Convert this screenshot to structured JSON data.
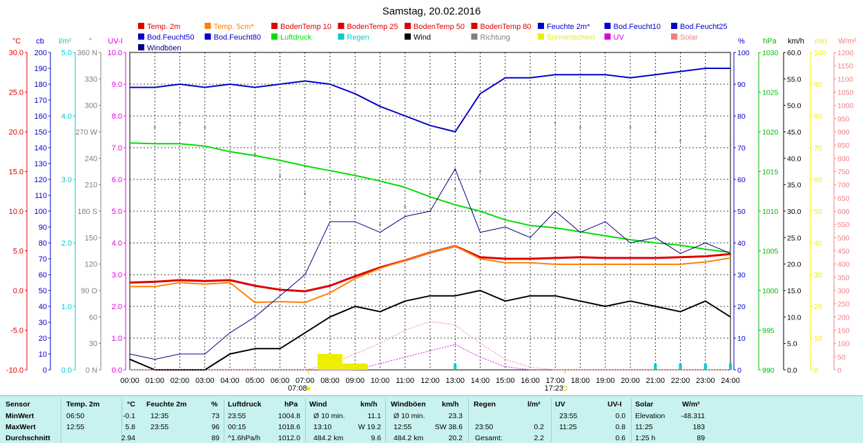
{
  "title": "Samstag, 20.02.2016",
  "legend": [
    {
      "label": "Temp. 2m",
      "color": "#dd0000"
    },
    {
      "label": "Temp. 5cm*",
      "color": "#ff8000"
    },
    {
      "label": "BodenTemp 10",
      "color": "#dd0000"
    },
    {
      "label": "BodenTemp 25",
      "color": "#dd0000"
    },
    {
      "label": "BodenTemp 50",
      "color": "#dd0000"
    },
    {
      "label": "BodenTemp 80",
      "color": "#dd0000"
    },
    {
      "label": "Feuchte 2m*",
      "color": "#0000cc"
    },
    {
      "label": "Bod.Feucht10",
      "color": "#0000cc"
    },
    {
      "label": "Bod.Feucht25",
      "color": "#0000cc"
    },
    {
      "label": "Bod.Feucht50",
      "color": "#0000cc"
    },
    {
      "label": "Bod.Feucht80",
      "color": "#0000cc"
    },
    {
      "label": "Luftdruck",
      "color": "#00dd00"
    },
    {
      "label": "Regen",
      "color": "#00cccc"
    },
    {
      "label": "Wind",
      "color": "#000000"
    },
    {
      "label": "Richtung",
      "color": "#808080"
    },
    {
      "label": "Sonnenschein",
      "color": "#eeee00"
    },
    {
      "label": "UV",
      "color": "#dd00dd"
    },
    {
      "label": "Solar",
      "color": "#f08080"
    },
    {
      "label": "Windböen",
      "color": "#000080"
    }
  ],
  "axes": {
    "left": [
      {
        "unit": "°C",
        "color": "#dd0000",
        "ticks": [
          "30.0",
          "25.0",
          "20.0",
          "15.0",
          "10.0",
          "5.0",
          "0.0",
          "-5.0",
          "-10.0"
        ]
      },
      {
        "unit": "cb",
        "color": "#0000cc",
        "ticks": [
          "200",
          "190",
          "180",
          "170",
          "160",
          "150",
          "140",
          "130",
          "120",
          "110",
          "100",
          "90",
          "80",
          "70",
          "60",
          "50",
          "40",
          "30",
          "20",
          "10",
          "0"
        ]
      },
      {
        "unit": "l/m²",
        "color": "#00cccc",
        "ticks": [
          "5.0",
          "4.0",
          "3.0",
          "2.0",
          "1.0",
          "0.0"
        ]
      },
      {
        "unit": "°",
        "color": "#808080",
        "ticks": [
          "360 N",
          "330",
          "300",
          "270 W",
          "240",
          "210",
          "180 S",
          "150",
          "120",
          "90 O",
          "60",
          "30",
          "0 N"
        ]
      },
      {
        "unit": "UV-I",
        "color": "#dd00dd",
        "ticks": [
          "10.0",
          "9.0",
          "8.0",
          "7.0",
          "6.0",
          "5.0",
          "4.0",
          "3.0",
          "2.0",
          "1.0",
          "0.0"
        ]
      }
    ],
    "right": [
      {
        "unit": "%",
        "color": "#0000cc",
        "ticks": [
          "100",
          "90",
          "80",
          "70",
          "60",
          "50",
          "40",
          "30",
          "20",
          "10",
          "0"
        ]
      },
      {
        "unit": "hPa",
        "color": "#00bb00",
        "ticks": [
          "1030",
          "1025",
          "1020",
          "1015",
          "1010",
          "1005",
          "1000",
          "995",
          "990"
        ]
      },
      {
        "unit": "km/h",
        "color": "#000000",
        "ticks": [
          "60.0",
          "55.0",
          "50.0",
          "45.0",
          "40.0",
          "35.0",
          "30.0",
          "25.0",
          "20.0",
          "15.0",
          "10.0",
          "5.0",
          "0.0"
        ]
      },
      {
        "unit": "min",
        "color": "#eeee00",
        "ticks": [
          "100",
          "90",
          "80",
          "70",
          "60",
          "50",
          "40",
          "30",
          "20",
          "10",
          "0"
        ]
      },
      {
        "unit": "W/m²",
        "color": "#f08080",
        "ticks": [
          "1200",
          "1150",
          "1100",
          "1050",
          "1000",
          "950",
          "900",
          "850",
          "800",
          "750",
          "700",
          "650",
          "600",
          "550",
          "500",
          "450",
          "400",
          "350",
          "300",
          "250",
          "200",
          "150",
          "100",
          "50",
          "0"
        ]
      }
    ],
    "time_ticks": [
      "00:00",
      "01:00",
      "02:00",
      "03:00",
      "04:00",
      "05:00",
      "06:00",
      "07:00",
      "08:00",
      "09:00",
      "10:00",
      "11:00",
      "12:00",
      "13:00",
      "14:00",
      "15:00",
      "16:00",
      "17:00",
      "18:00",
      "19:00",
      "20:00",
      "21:00",
      "22:00",
      "23:00",
      "24:00"
    ],
    "sunrise": "07:08",
    "sunset": "17:23"
  },
  "chart_data": {
    "type": "line",
    "title": "Samstag, 20.02.2016",
    "x": [
      "00:00",
      "01:00",
      "02:00",
      "03:00",
      "04:00",
      "05:00",
      "06:00",
      "07:00",
      "08:00",
      "09:00",
      "10:00",
      "11:00",
      "12:00",
      "13:00",
      "14:00",
      "15:00",
      "16:00",
      "17:00",
      "18:00",
      "19:00",
      "20:00",
      "21:00",
      "22:00",
      "23:00",
      "24:00"
    ],
    "series": [
      {
        "name": "Temp. 2m",
        "unit": "°C",
        "values": [
          1.0,
          1.1,
          1.3,
          1.2,
          1.3,
          0.6,
          0.1,
          -0.1,
          0.6,
          1.8,
          2.9,
          3.8,
          4.8,
          5.6,
          4.2,
          4.0,
          4.0,
          4.1,
          4.2,
          4.1,
          4.1,
          4.1,
          4.2,
          4.3,
          4.6
        ]
      },
      {
        "name": "Temp. 5cm*",
        "unit": "°C",
        "values": [
          0.5,
          0.5,
          1.0,
          0.8,
          1.0,
          -1.5,
          -1.4,
          -1.5,
          -0.3,
          1.5,
          2.8,
          3.8,
          4.8,
          5.6,
          4.0,
          3.5,
          3.5,
          3.3,
          3.3,
          3.3,
          3.3,
          3.3,
          3.3,
          3.6,
          4.1
        ]
      },
      {
        "name": "Feuchte 2m*",
        "unit": "%",
        "values": [
          89,
          89,
          90,
          89,
          90,
          89,
          90,
          91,
          90,
          87,
          83,
          80,
          77,
          75,
          87,
          92,
          92,
          93,
          93,
          93,
          92,
          93,
          94,
          95,
          95
        ]
      },
      {
        "name": "Luftdruck",
        "unit": "hPa",
        "values": [
          1018.6,
          1018.5,
          1018.5,
          1018.2,
          1017.5,
          1017.0,
          1016.4,
          1015.7,
          1015.1,
          1014.5,
          1013.8,
          1013.0,
          1011.8,
          1010.8,
          1010.0,
          1008.9,
          1008.2,
          1007.9,
          1007.4,
          1006.9,
          1006.4,
          1006.0,
          1005.7,
          1005.2,
          1004.8
        ]
      },
      {
        "name": "Wind",
        "unit": "km/h",
        "values": [
          2,
          0,
          0,
          0,
          3,
          4,
          4,
          7,
          10,
          12,
          11,
          13,
          14,
          14,
          15,
          13,
          14,
          14,
          13,
          12,
          13,
          12,
          11,
          13,
          10
        ]
      },
      {
        "name": "Windböen",
        "unit": "km/h",
        "values": [
          3,
          2,
          3,
          3,
          7,
          10,
          14,
          18,
          28,
          28,
          26,
          29,
          30,
          38,
          26,
          27,
          25,
          30,
          26,
          28,
          24,
          25,
          22,
          24,
          22
        ]
      },
      {
        "name": "Richtung",
        "unit": "°",
        "values": [
          280,
          275,
          280,
          275,
          265,
          245,
          220,
          200,
          190,
          175,
          165,
          185,
          200,
          205,
          225,
          250,
          270,
          280,
          275,
          285,
          275,
          270,
          260,
          265,
          265
        ]
      },
      {
        "name": "UV",
        "unit": "UV-I",
        "values": [
          0,
          0,
          0,
          0,
          0,
          0,
          0,
          0,
          0,
          0,
          0.2,
          0.4,
          0.6,
          0.8,
          0.4,
          0.1,
          0,
          0,
          0,
          0,
          0,
          0,
          0,
          0,
          0
        ]
      },
      {
        "name": "Solar",
        "unit": "W/m²",
        "values": [
          0,
          0,
          0,
          0,
          0,
          0,
          0,
          0,
          20,
          60,
          100,
          150,
          183,
          170,
          100,
          40,
          10,
          0,
          0,
          0,
          0,
          0,
          0,
          0,
          0
        ]
      },
      {
        "name": "Regen",
        "unit": "l/m²",
        "values": [
          0,
          0,
          0,
          0,
          0,
          0,
          0,
          0,
          0,
          0,
          0,
          0,
          0,
          0.1,
          0,
          0,
          0,
          0,
          0,
          0,
          0,
          0.1,
          0.1,
          0.1,
          0.1
        ]
      },
      {
        "name": "Sonnenschein",
        "unit": "min",
        "values": [
          0,
          0,
          0,
          0,
          0,
          0,
          0,
          0,
          5,
          2,
          0,
          0,
          0,
          0,
          0,
          0,
          0,
          0,
          0,
          0,
          0,
          0,
          0,
          0,
          0
        ]
      }
    ]
  },
  "stats": {
    "headers": {
      "sensor": "Sensor",
      "temp": "Temp. 2m",
      "temp_unit": "°C",
      "hum": "Feuchte 2m",
      "hum_unit": "%",
      "press": "Luftdruck",
      "press_unit": "hPa",
      "wind": "Wind",
      "wind_unit": "km/h",
      "gust": "Windböen",
      "gust_unit": "km/h",
      "rain": "Regen",
      "rain_unit": "l/m²",
      "uv": "UV",
      "uv_unit": "UV-I",
      "solar": "Solar",
      "solar_unit": "W/m²"
    },
    "rows": [
      {
        "label": "MinWert",
        "temp_time": "06:50",
        "temp_val": "-0.1",
        "hum_time": "12:35",
        "hum_val": "73",
        "press_time": "23:55",
        "press_val": "1004.8",
        "wind_time": "Ø 10 min.",
        "wind_val": "11.1",
        "gust_time": "Ø 10 min.",
        "gust_val": "23.3",
        "rain_time": "",
        "rain_val": "",
        "uv_time": "23:55",
        "uv_val": "0.0",
        "solar_time": "Elevation",
        "solar_val": "-48.311"
      },
      {
        "label": "MaxWert",
        "temp_time": "12:55",
        "temp_val": "5.8",
        "hum_time": "23:55",
        "hum_val": "96",
        "press_time": "00:15",
        "press_val": "1018.6",
        "wind_time": "13:10",
        "wind_val": "W 19.2",
        "gust_time": "12:55",
        "gust_val": "SW 38.6",
        "rain_time": "23:50",
        "rain_val": "0.2",
        "uv_time": "11:25",
        "uv_val": "0.8",
        "solar_time": "11:25",
        "solar_val": "183"
      },
      {
        "label": "Durchschnitt",
        "temp_time": "",
        "temp_val": "2.94",
        "hum_time": "",
        "hum_val": "89",
        "press_time": "^1.6hPa/h",
        "press_val": "1012.0",
        "wind_time": "484.2 km",
        "wind_val": "9.6",
        "gust_time": "484.2 km",
        "gust_val": "20.2",
        "rain_time": "Gesamt:",
        "rain_val": "2.2",
        "uv_time": "",
        "uv_val": "0.6",
        "solar_time": "1:25 h",
        "solar_val": "89"
      }
    ]
  }
}
